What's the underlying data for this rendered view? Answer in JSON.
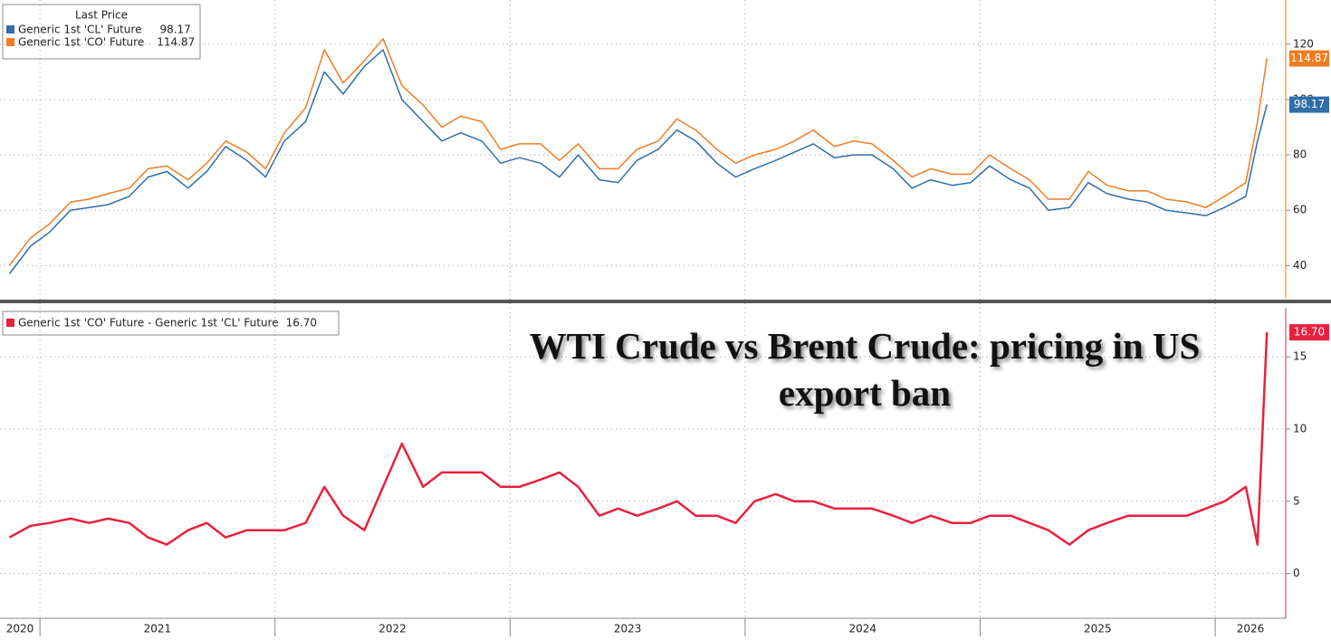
{
  "chart_data": [
    {
      "type": "line",
      "legend_title": "Last Price",
      "x": [
        2020.87,
        2020.96,
        2021.04,
        2021.13,
        2021.21,
        2021.29,
        2021.38,
        2021.46,
        2021.54,
        2021.63,
        2021.71,
        2021.79,
        2021.88,
        2021.96,
        2022.04,
        2022.13,
        2022.21,
        2022.29,
        2022.38,
        2022.46,
        2022.54,
        2022.63,
        2022.71,
        2022.79,
        2022.88,
        2022.96,
        2023.04,
        2023.13,
        2023.21,
        2023.29,
        2023.38,
        2023.46,
        2023.54,
        2023.63,
        2023.71,
        2023.79,
        2023.88,
        2023.96,
        2024.04,
        2024.13,
        2024.21,
        2024.29,
        2024.38,
        2024.46,
        2024.54,
        2024.63,
        2024.71,
        2024.79,
        2024.88,
        2024.96,
        2025.04,
        2025.13,
        2025.21,
        2025.29,
        2025.38,
        2025.46,
        2025.54,
        2025.63,
        2025.71,
        2025.79,
        2025.88,
        2025.96,
        2026.04,
        2026.13,
        2026.18,
        2026.22
      ],
      "xlim": [
        2020.83,
        2026.3
      ],
      "ylim": [
        28,
        136
      ],
      "yticks": [
        40,
        60,
        80,
        100,
        120
      ],
      "grid": true,
      "series": [
        {
          "name": "Generic 1st 'CL' Future",
          "color": "#2f6ea8",
          "values": [
            37,
            47,
            52,
            60,
            61,
            62,
            65,
            72,
            74,
            68,
            74,
            83,
            78,
            72,
            85,
            92,
            110,
            102,
            112,
            118,
            100,
            92,
            85,
            88,
            85,
            77,
            79,
            77,
            72,
            80,
            71,
            70,
            78,
            82,
            89,
            85,
            77,
            72,
            75,
            78,
            81,
            84,
            79,
            80,
            80,
            75,
            68,
            71,
            69,
            70,
            76,
            71,
            68,
            60,
            61,
            70,
            66,
            64,
            63,
            60,
            59,
            58,
            61,
            65,
            85,
            98.17
          ]
        },
        {
          "name": "Generic 1st 'CO' Future",
          "color": "#f07c22",
          "values": [
            40,
            50,
            55,
            63,
            64,
            66,
            68,
            75,
            76,
            71,
            77,
            85,
            81,
            75,
            88,
            97,
            118,
            106,
            114,
            122,
            105,
            98,
            90,
            94,
            92,
            82,
            84,
            84,
            78,
            84,
            75,
            75,
            82,
            85,
            93,
            89,
            82,
            77,
            80,
            82,
            85,
            89,
            83,
            85,
            84,
            78,
            72,
            75,
            73,
            73,
            80,
            75,
            71,
            64,
            64,
            74,
            69,
            67,
            67,
            64,
            63,
            61,
            65,
            70,
            92,
            114.87
          ]
        }
      ]
    },
    {
      "type": "line",
      "x": [
        2020.87,
        2020.96,
        2021.04,
        2021.13,
        2021.21,
        2021.29,
        2021.38,
        2021.46,
        2021.54,
        2021.63,
        2021.71,
        2021.79,
        2021.88,
        2021.96,
        2022.04,
        2022.13,
        2022.21,
        2022.29,
        2022.38,
        2022.46,
        2022.54,
        2022.63,
        2022.71,
        2022.79,
        2022.88,
        2022.96,
        2023.04,
        2023.13,
        2023.21,
        2023.29,
        2023.38,
        2023.46,
        2023.54,
        2023.63,
        2023.71,
        2023.79,
        2023.88,
        2023.96,
        2024.04,
        2024.13,
        2024.21,
        2024.29,
        2024.38,
        2024.46,
        2024.54,
        2024.63,
        2024.71,
        2024.79,
        2024.88,
        2024.96,
        2025.04,
        2025.13,
        2025.21,
        2025.29,
        2025.38,
        2025.46,
        2025.54,
        2025.63,
        2025.71,
        2025.79,
        2025.88,
        2025.96,
        2026.04,
        2026.13,
        2026.18,
        2026.22
      ],
      "xlim": [
        2020.83,
        2026.3
      ],
      "xticks": [
        {
          "value": 2020,
          "label": "2020"
        },
        {
          "value": 2021,
          "label": "2021"
        },
        {
          "value": 2022,
          "label": "2022"
        },
        {
          "value": 2023,
          "label": "2023"
        },
        {
          "value": 2024,
          "label": "2024"
        },
        {
          "value": 2025,
          "label": "2025"
        },
        {
          "value": 2026,
          "label": "2026"
        }
      ],
      "ylim": [
        -3.1,
        18.4
      ],
      "yticks": [
        0,
        5,
        10,
        15
      ],
      "grid": true,
      "annotation": "WTI Crude vs Brent Crude: pricing in US export ban",
      "series": [
        {
          "name": "Generic 1st 'CO' Future - Generic 1st 'CL' Future",
          "color": "#e8213f",
          "values": [
            2.5,
            3.3,
            3.5,
            3.8,
            3.5,
            3.8,
            3.5,
            2.5,
            2,
            3,
            3.5,
            2.5,
            3,
            3,
            3,
            3.5,
            6,
            4,
            3,
            6,
            9,
            6,
            7,
            7,
            7,
            6,
            6,
            6.5,
            7,
            6,
            4,
            4.5,
            4,
            4.5,
            5,
            4,
            4,
            3.5,
            5,
            5.5,
            5,
            5,
            4.5,
            4.5,
            4.5,
            4,
            3.5,
            4,
            3.5,
            3.5,
            4,
            4,
            3.5,
            3,
            2,
            3,
            3.5,
            4,
            4,
            4,
            4,
            4.5,
            5,
            6,
            2,
            16.7
          ],
          "value_labels": [
            null,
            null,
            null,
            null,
            null,
            null,
            null,
            null,
            null,
            null,
            null,
            null,
            null,
            null,
            null,
            null,
            null,
            null,
            null,
            null,
            null,
            null,
            null,
            null,
            null,
            null,
            null,
            null,
            null,
            null,
            null,
            null,
            null,
            null,
            null,
            null,
            null,
            null,
            null,
            null,
            null,
            null,
            null,
            null,
            null,
            null,
            null,
            null,
            null,
            null,
            null,
            null,
            null,
            null,
            null,
            null,
            null,
            null,
            null,
            null,
            null,
            null,
            null,
            null,
            null,
            "16.70"
          ]
        }
      ]
    }
  ]
}
